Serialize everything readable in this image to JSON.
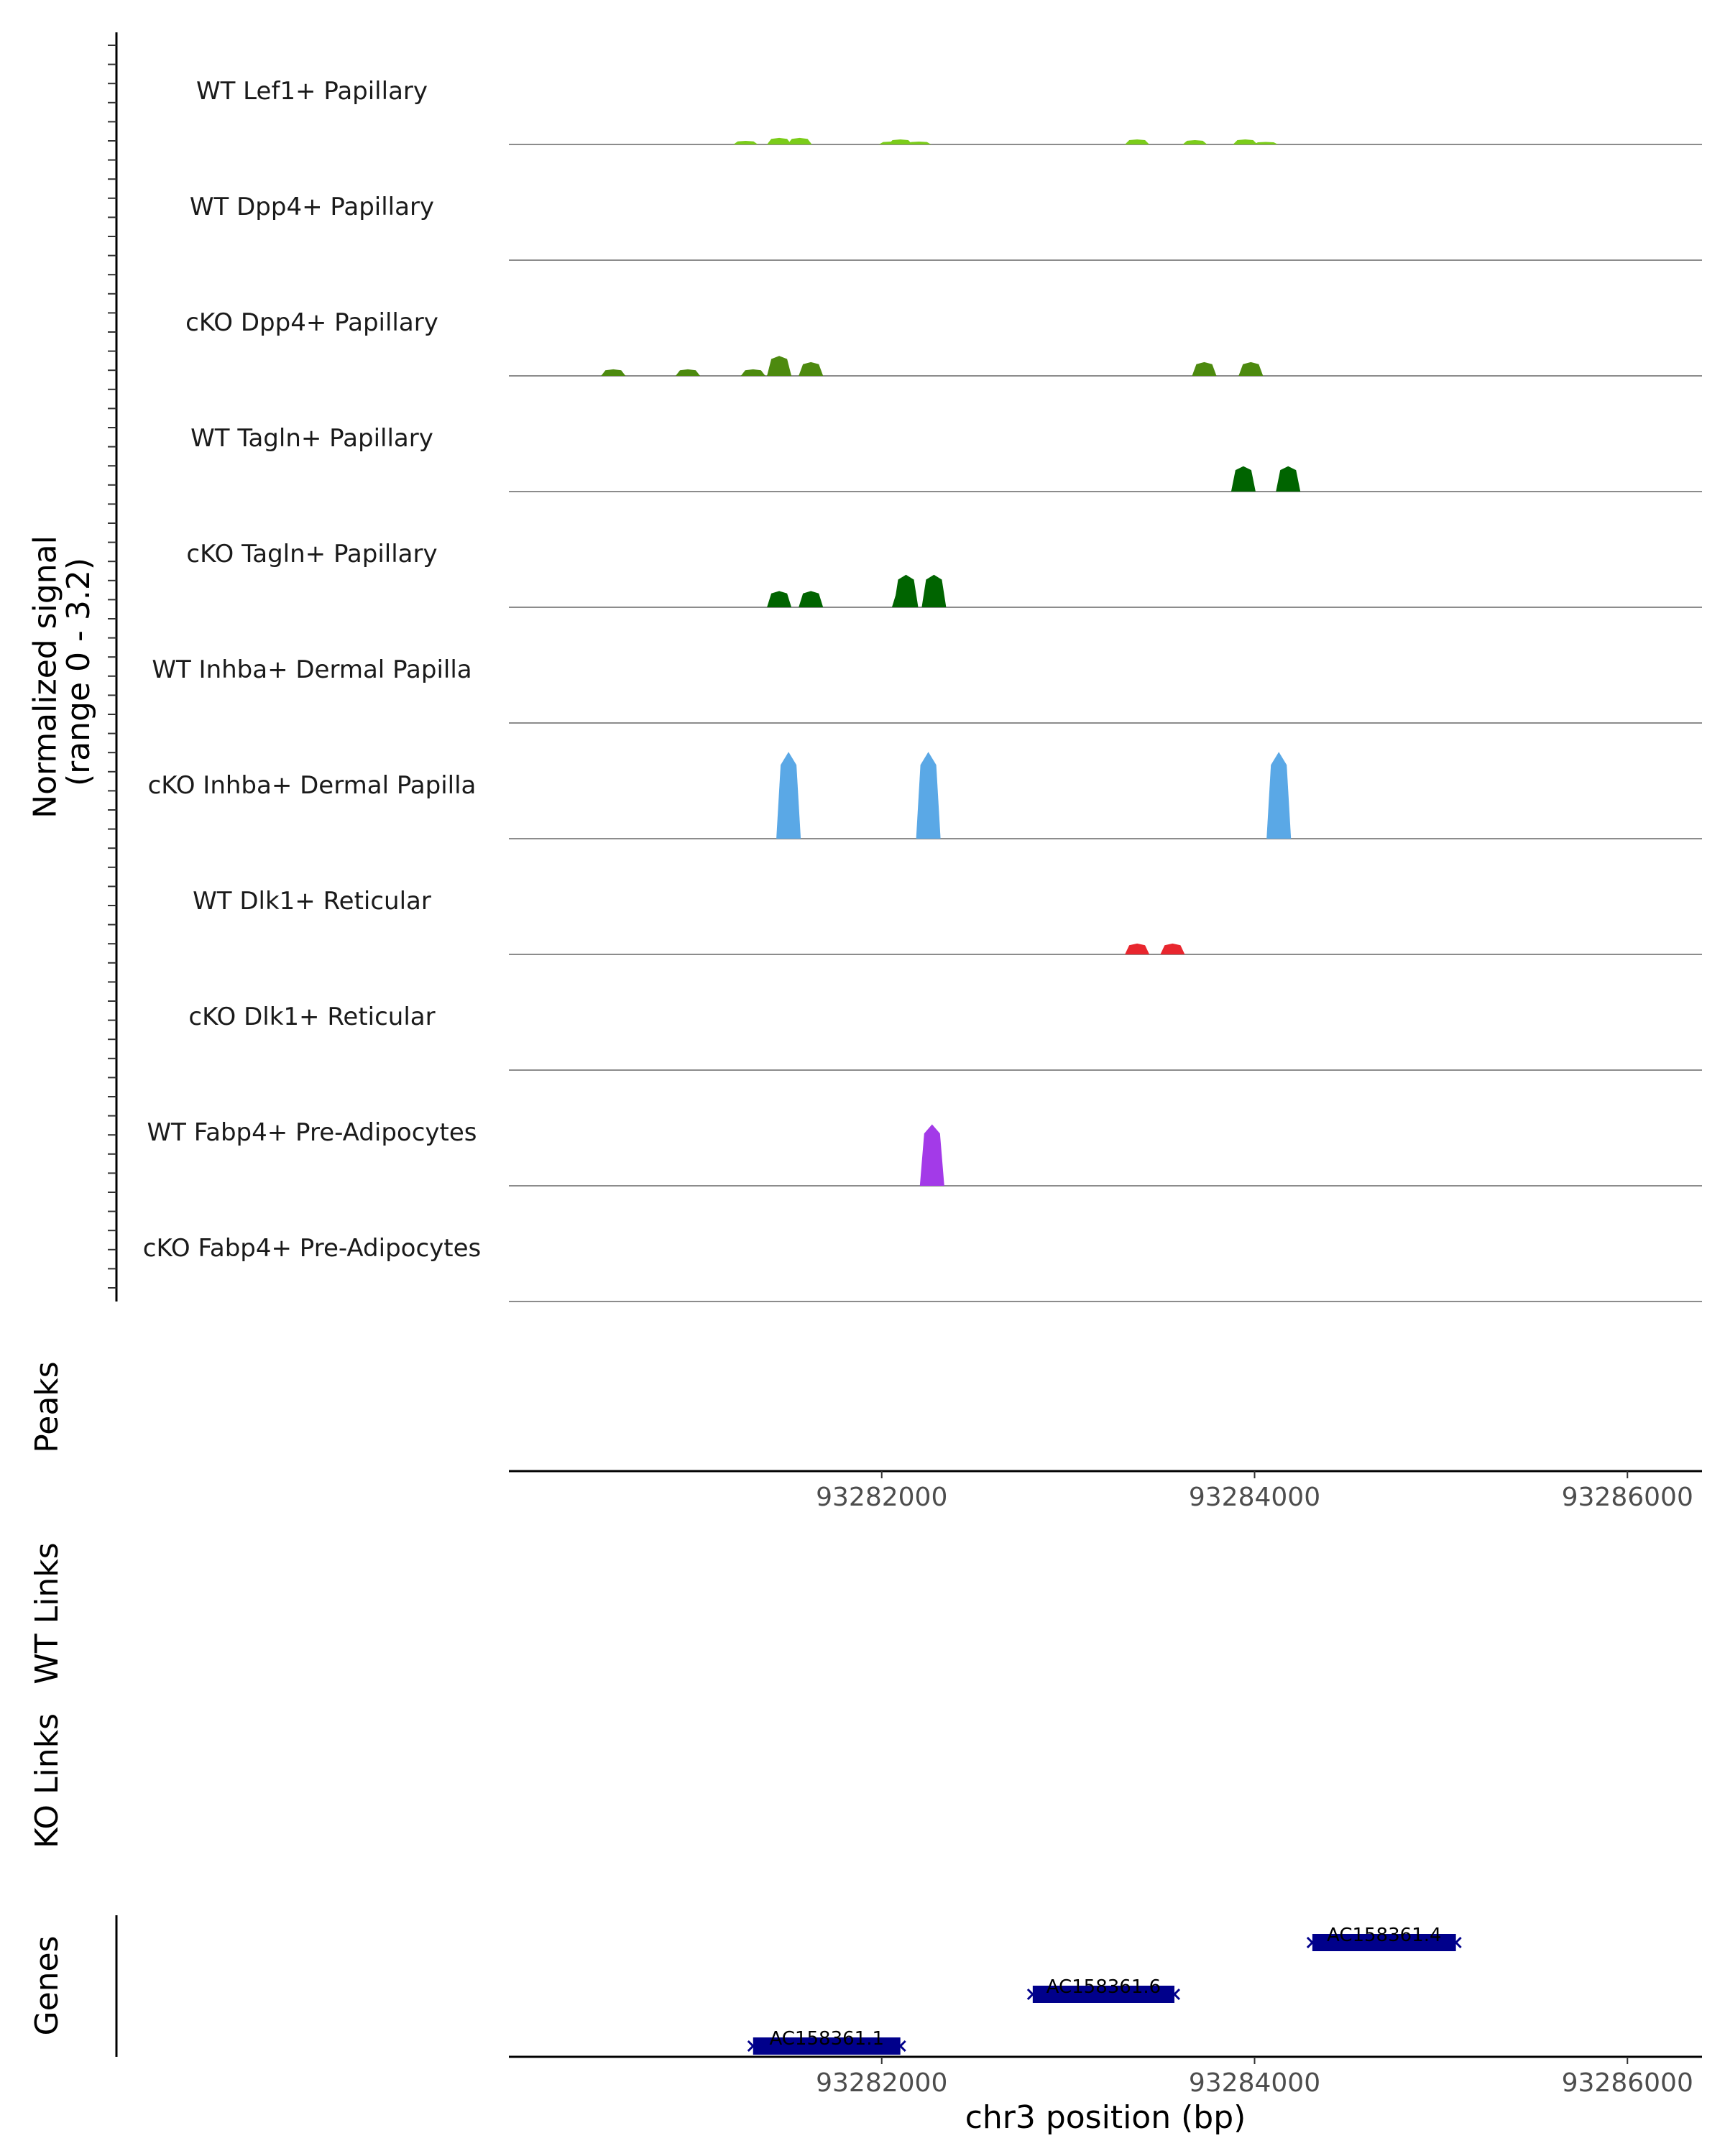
{
  "chart_data": {
    "type": "area",
    "region": "chr3",
    "xlim": [
      93280000,
      93286400
    ],
    "x_ticks": [
      93282000,
      93284000,
      93286000
    ],
    "x_tick_labels": [
      "93282000",
      "93284000",
      "93286000"
    ],
    "xlabel": "chr3 position (bp)",
    "ylabel_line1": "Normalized signal",
    "ylabel_line2": "(range 0 - 3.2)",
    "ylim": [
      0,
      3.2
    ],
    "tracks": [
      {
        "name": "WT Lef1+ Papillary",
        "color": "#7bcc1a",
        "peaks": [
          [
            93281270,
            0.1
          ],
          [
            93281450,
            0.18
          ],
          [
            93281560,
            0.18
          ],
          [
            93282050,
            0.08
          ],
          [
            93282100,
            0.14
          ],
          [
            93282200,
            0.08
          ],
          [
            93283370,
            0.14
          ],
          [
            93283680,
            0.12
          ],
          [
            93283950,
            0.14
          ],
          [
            93284060,
            0.07
          ]
        ]
      },
      {
        "name": "WT Dpp4+ Papillary",
        "color": "#5a9e12",
        "peaks": []
      },
      {
        "name": "cKO Dpp4+ Papillary",
        "color": "#4d8a0f",
        "peaks": [
          [
            93280560,
            0.18
          ],
          [
            93280960,
            0.18
          ],
          [
            93281310,
            0.18
          ],
          [
            93281450,
            0.55
          ],
          [
            93281620,
            0.38
          ],
          [
            93283730,
            0.38
          ],
          [
            93283980,
            0.38
          ]
        ]
      },
      {
        "name": "WT Tagln+ Papillary",
        "color": "#006400",
        "peaks": [
          [
            93283940,
            0.7
          ],
          [
            93284180,
            0.7
          ]
        ]
      },
      {
        "name": "cKO Tagln+ Papillary",
        "color": "#006400",
        "peaks": [
          [
            93281450,
            0.45
          ],
          [
            93281620,
            0.45
          ],
          [
            93282120,
            0.45
          ],
          [
            93282130,
            0.9
          ],
          [
            93282280,
            0.9
          ]
        ]
      },
      {
        "name": "WT Inhba+ Dermal Papilla",
        "color": "#5aa8e6",
        "peaks": []
      },
      {
        "name": "cKO Inhba+ Dermal Papilla",
        "color": "#5aa8e6",
        "peaks": [
          [
            93281500,
            2.4
          ],
          [
            93282250,
            2.4
          ],
          [
            93284130,
            2.4
          ]
        ]
      },
      {
        "name": "WT Dlk1+ Reticular",
        "color": "#e8262e",
        "peaks": [
          [
            93283370,
            0.3
          ],
          [
            93283560,
            0.3
          ]
        ]
      },
      {
        "name": "cKO Dlk1+ Reticular",
        "color": "#e8262e",
        "peaks": []
      },
      {
        "name": "WT Fabp4+ Pre-Adipocytes",
        "color": "#a33ae8",
        "peaks": [
          [
            93282270,
            1.7
          ]
        ]
      },
      {
        "name": "cKO Fabp4+ Pre-Adipocytes",
        "color": "#a33ae8",
        "peaks": []
      }
    ],
    "panels": {
      "peaks": "Peaks",
      "wt_links": "WT Links",
      "ko_links": "KO Links",
      "genes": "Genes"
    },
    "genes": [
      {
        "name": "AC158361.1",
        "start": 93281310,
        "end": 93282100,
        "row": 0
      },
      {
        "name": "AC158361.6",
        "start": 93282810,
        "end": 93283570,
        "row": 1
      },
      {
        "name": "AC158361.4",
        "start": 93284310,
        "end": 93285080,
        "row": 2
      }
    ],
    "gene_color": "#00008b"
  }
}
